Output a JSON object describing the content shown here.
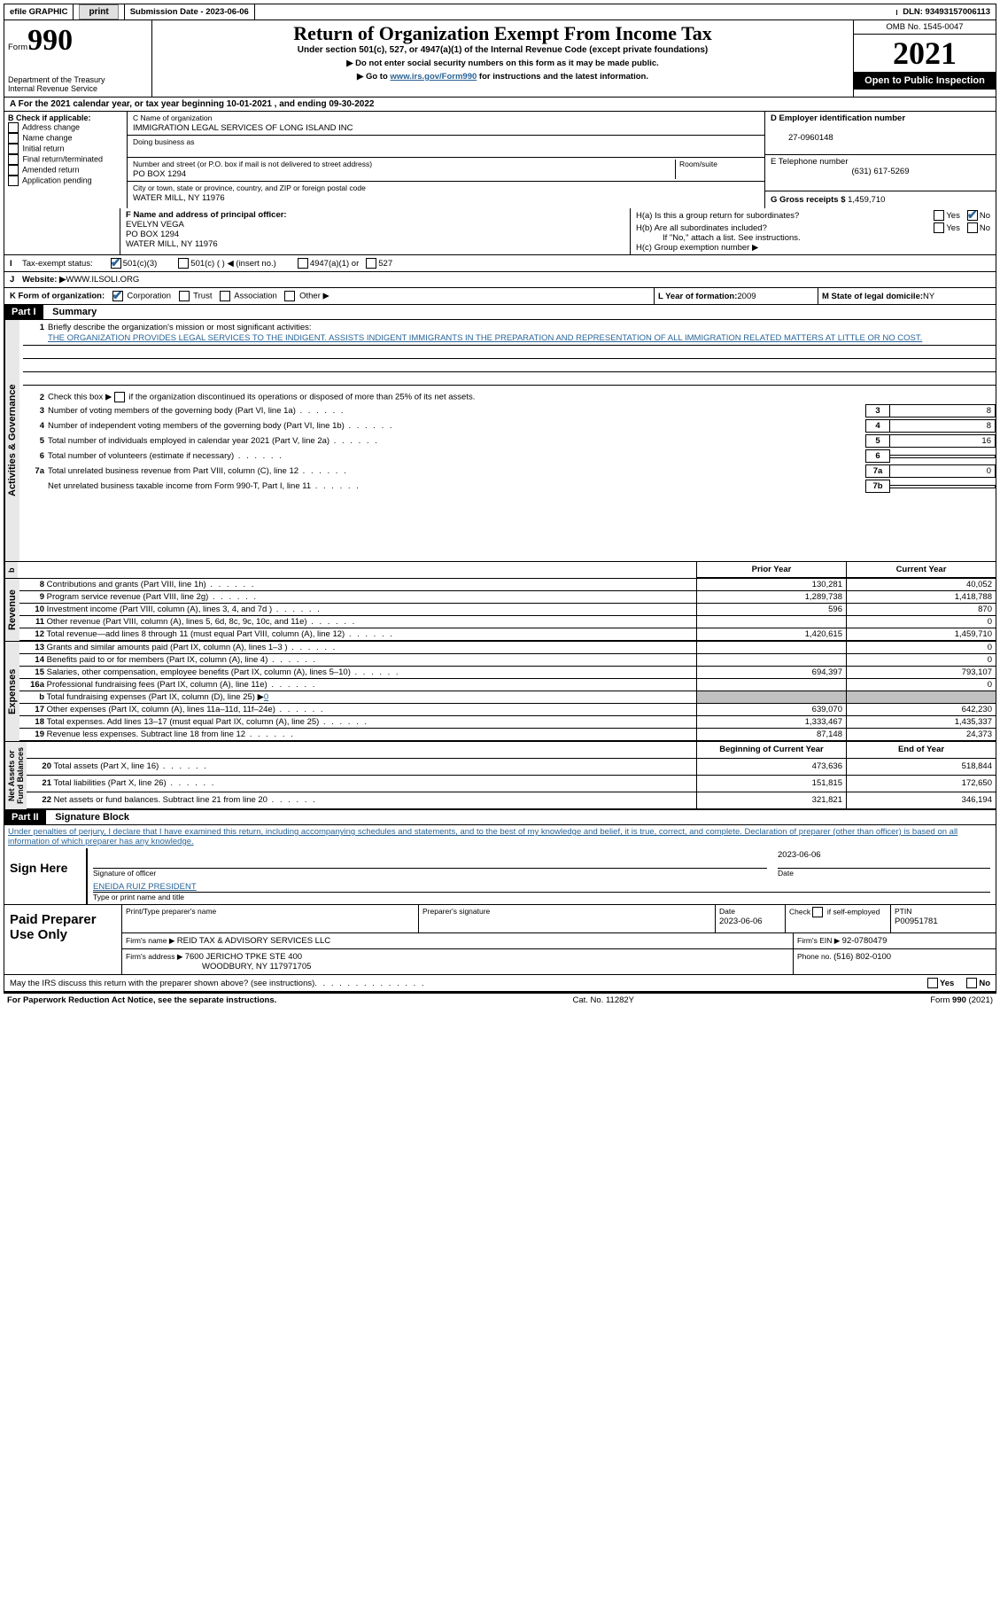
{
  "topbar": {
    "efile": "efile GRAPHIC",
    "print": "print",
    "sub_label": "Submission Date - ",
    "sub_date": "2023-06-06",
    "dln_label": "DLN: ",
    "dln": "93493157006113"
  },
  "header": {
    "form_label": "Form",
    "form_num": "990",
    "title": "Return of Organization Exempt From Income Tax",
    "subtitle": "Under section 501(c), 527, or 4947(a)(1) of the Internal Revenue Code (except private foundations)",
    "note1": "Do not enter social security numbers on this form as it may be made public.",
    "note2_a": "Go to ",
    "note2_link": "www.irs.gov/Form990",
    "note2_b": " for instructions and the latest information.",
    "dept": "Department of the Treasury\nInternal Revenue Service",
    "omb": "OMB No. 1545-0047",
    "year": "2021",
    "open": "Open to Public Inspection"
  },
  "row_a": {
    "text_a": "A For the 2021 calendar year, or tax year beginning ",
    "begin": "10-01-2021",
    "text_b": " , and ending ",
    "end": "09-30-2022"
  },
  "col_b": {
    "label": "B Check if applicable:",
    "items": [
      "Address change",
      "Name change",
      "Initial return",
      "Final return/terminated",
      "Amended return",
      "Application pending"
    ]
  },
  "col_c": {
    "name_label": "C Name of organization",
    "name": "IMMIGRATION LEGAL SERVICES OF LONG ISLAND INC",
    "dba_label": "Doing business as",
    "dba": "",
    "addr_label": "Number and street (or P.O. box if mail is not delivered to street address)",
    "room_label": "Room/suite",
    "addr": "PO BOX 1294",
    "city_label": "City or town, state or province, country, and ZIP or foreign postal code",
    "city": "WATER MILL, NY  11976"
  },
  "col_d": {
    "ein_label": "D Employer identification number",
    "ein": "27-0960148",
    "tel_label": "E Telephone number",
    "tel": "(631) 617-5269",
    "gross_label": "G Gross receipts $ ",
    "gross": "1,459,710"
  },
  "section_f": {
    "label": "F Name and address of principal officer:",
    "name": "EVELYN VEGA",
    "addr1": "PO BOX 1294",
    "addr2": "WATER MILL, NY  11976"
  },
  "section_h": {
    "ha": "H(a)  Is this a group return for subordinates?",
    "hb": "H(b)  Are all subordinates included?",
    "hb_note": "If \"No,\" attach a list. See instructions.",
    "hc": "H(c)  Group exemption number ▶",
    "yes": "Yes",
    "no": "No"
  },
  "row_i": {
    "label": "I",
    "text": "Tax-exempt status:",
    "opt1": "501(c)(3)",
    "opt2": "501(c) (   ) ◀ (insert no.)",
    "opt3": "4947(a)(1) or",
    "opt4": "527"
  },
  "row_j": {
    "label": "J",
    "text": "Website: ▶",
    "val": " WWW.ILSOLI.ORG"
  },
  "row_k": {
    "label": "K Form of organization:",
    "opts": [
      "Corporation",
      "Trust",
      "Association",
      "Other ▶"
    ],
    "l_label": "L Year of formation: ",
    "l_val": "2009",
    "m_label": "M State of legal domicile: ",
    "m_val": "NY"
  },
  "part1": {
    "hdr": "Part I",
    "title": "Summary",
    "line1_label": "1",
    "line1_text": "Briefly describe the organization's mission or most significant activities:",
    "line1_val": "THE ORGANIZATION PROVIDES LEGAL SERVICES TO THE INDIGENT. ASSISTS INDIGENT IMMIGRANTS IN THE PREPARATION AND REPRESENTATION OF ALL IMMIGRATION RELATED MATTERS AT LITTLE OR NO COST.",
    "line2": "Check this box ▶       if the organization discontinued its operations or disposed of more than 25% of its net assets.",
    "lines_gov": [
      {
        "n": "3",
        "t": "Number of voting members of the governing body (Part VI, line 1a)",
        "b": "3",
        "v": "8"
      },
      {
        "n": "4",
        "t": "Number of independent voting members of the governing body (Part VI, line 1b)",
        "b": "4",
        "v": "8"
      },
      {
        "n": "5",
        "t": "Total number of individuals employed in calendar year 2021 (Part V, line 2a)",
        "b": "5",
        "v": "16"
      },
      {
        "n": "6",
        "t": "Total number of volunteers (estimate if necessary)",
        "b": "6",
        "v": ""
      },
      {
        "n": "7a",
        "t": "Total unrelated business revenue from Part VIII, column (C), line 12",
        "b": "7a",
        "v": "0"
      },
      {
        "n": "",
        "t": "Net unrelated business taxable income from Form 990-T, Part I, line 11",
        "b": "7b",
        "v": ""
      }
    ],
    "col_prior": "Prior Year",
    "col_curr": "Current Year",
    "col_begin": "Beginning of Current Year",
    "col_end": "End of Year",
    "tab_gov": "Activities & Governance",
    "tab_rev": "Revenue",
    "tab_exp": "Expenses",
    "tab_net": "Net Assets or\nFund Balances",
    "rev": [
      {
        "n": "8",
        "t": "Contributions and grants (Part VIII, line 1h)",
        "p": "130,281",
        "c": "40,052"
      },
      {
        "n": "9",
        "t": "Program service revenue (Part VIII, line 2g)",
        "p": "1,289,738",
        "c": "1,418,788"
      },
      {
        "n": "10",
        "t": "Investment income (Part VIII, column (A), lines 3, 4, and 7d )",
        "p": "596",
        "c": "870"
      },
      {
        "n": "11",
        "t": "Other revenue (Part VIII, column (A), lines 5, 6d, 8c, 9c, 10c, and 11e)",
        "p": "",
        "c": "0"
      },
      {
        "n": "12",
        "t": "Total revenue—add lines 8 through 11 (must equal Part VIII, column (A), line 12)",
        "p": "1,420,615",
        "c": "1,459,710"
      }
    ],
    "exp": [
      {
        "n": "13",
        "t": "Grants and similar amounts paid (Part IX, column (A), lines 1–3 )",
        "p": "",
        "c": "0"
      },
      {
        "n": "14",
        "t": "Benefits paid to or for members (Part IX, column (A), line 4)",
        "p": "",
        "c": "0"
      },
      {
        "n": "15",
        "t": "Salaries, other compensation, employee benefits (Part IX, column (A), lines 5–10)",
        "p": "694,397",
        "c": "793,107"
      },
      {
        "n": "16a",
        "t": "Professional fundraising fees (Part IX, column (A), line 11e)",
        "p": "",
        "c": "0"
      },
      {
        "n": "b",
        "t": "Total fundraising expenses (Part IX, column (D), line 25) ▶",
        "p": "SHADE",
        "c": "SHADE",
        "extra": "0"
      },
      {
        "n": "17",
        "t": "Other expenses (Part IX, column (A), lines 11a–11d, 11f–24e)",
        "p": "639,070",
        "c": "642,230"
      },
      {
        "n": "18",
        "t": "Total expenses. Add lines 13–17 (must equal Part IX, column (A), line 25)",
        "p": "1,333,467",
        "c": "1,435,337"
      },
      {
        "n": "19",
        "t": "Revenue less expenses. Subtract line 18 from line 12",
        "p": "87,148",
        "c": "24,373"
      }
    ],
    "net": [
      {
        "n": "20",
        "t": "Total assets (Part X, line 16)",
        "p": "473,636",
        "c": "518,844"
      },
      {
        "n": "21",
        "t": "Total liabilities (Part X, line 26)",
        "p": "151,815",
        "c": "172,650"
      },
      {
        "n": "22",
        "t": "Net assets or fund balances. Subtract line 21 from line 20",
        "p": "321,821",
        "c": "346,194"
      }
    ]
  },
  "part2": {
    "hdr": "Part II",
    "title": "Signature Block",
    "decl": "Under penalties of perjury, I declare that I have examined this return, including accompanying schedules and statements, and to the best of my knowledge and belief, it is true, correct, and complete. Declaration of preparer (other than officer) is based on all information of which preparer has any knowledge.",
    "sign_here": "Sign Here",
    "sig_officer": "Signature of officer",
    "sig_date": "2023-06-06",
    "date_lbl": "Date",
    "officer_name": "ENEIDA RUIZ PRESIDENT",
    "type_name": "Type or print name and title",
    "paid": "Paid Preparer Use Only",
    "prep_name_lbl": "Print/Type preparer's name",
    "prep_sig_lbl": "Preparer's signature",
    "prep_date": "2023-06-06",
    "check_self": "Check         if self-employed",
    "ptin_lbl": "PTIN",
    "ptin": "P00951781",
    "firm_name_lbl": "Firm's name    ▶ ",
    "firm_name": "REID TAX & ADVISORY SERVICES LLC",
    "firm_ein_lbl": "Firm's EIN ▶ ",
    "firm_ein": "92-0780479",
    "firm_addr_lbl": "Firm's address ▶ ",
    "firm_addr1": "7600 JERICHO TPKE STE 400",
    "firm_addr2": "WOODBURY, NY  117971705",
    "phone_lbl": "Phone no. ",
    "phone": "(516) 802-0100",
    "may_irs": "May the IRS discuss this return with the preparer shown above? (see instructions)",
    "yes": "Yes",
    "no": "No"
  },
  "footer": {
    "left": "For Paperwork Reduction Act Notice, see the separate instructions.",
    "mid": "Cat. No. 11282Y",
    "right": "Form 990 (2021)"
  }
}
